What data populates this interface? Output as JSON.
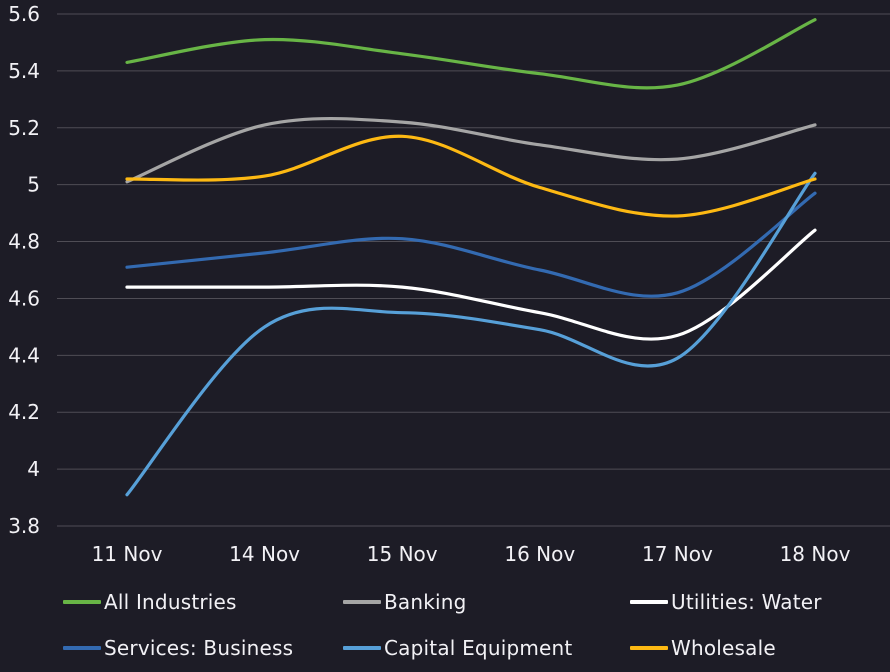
{
  "chart_data": {
    "type": "line",
    "title": "",
    "xlabel": "",
    "ylabel": "",
    "x_categories": [
      "11 Nov",
      "14 Nov",
      "15 Nov",
      "16 Nov",
      "17 Nov",
      "18 Nov"
    ],
    "y_ticks": [
      5.6,
      5.4,
      5.2,
      5,
      4.8,
      4.6,
      4.4,
      4.2,
      4,
      3.8
    ],
    "ylim": [
      3.8,
      5.6
    ],
    "grid": "horizontal-only",
    "legend_position": "bottom",
    "smoothing": "spline",
    "series": [
      {
        "name": "All Industries",
        "color": "#68b546",
        "values": [
          5.43,
          5.51,
          5.46,
          5.39,
          5.35,
          5.58
        ]
      },
      {
        "name": "Banking",
        "color": "#a5a5a5",
        "values": [
          5.01,
          5.21,
          5.22,
          5.14,
          5.09,
          5.21
        ]
      },
      {
        "name": "Utilities: Water",
        "color": "#ffffff",
        "values": [
          4.64,
          4.64,
          4.64,
          4.55,
          4.47,
          4.84
        ]
      },
      {
        "name": "Services: Business",
        "color": "#336ab1",
        "values": [
          4.71,
          4.76,
          4.81,
          4.7,
          4.62,
          4.97
        ]
      },
      {
        "name": "Capital Equipment",
        "color": "#57a0d8",
        "values": [
          3.91,
          4.5,
          4.55,
          4.49,
          4.39,
          5.04
        ]
      },
      {
        "name": "Wholesale",
        "color": "#fdb913",
        "values": [
          5.02,
          5.03,
          5.17,
          4.99,
          4.89,
          5.02
        ]
      }
    ],
    "colors": {
      "background": "#1d1c26",
      "gridline": "#4f4d55",
      "tick_text": "#f2f1f5",
      "legend_text": "#f2f1f5"
    }
  }
}
